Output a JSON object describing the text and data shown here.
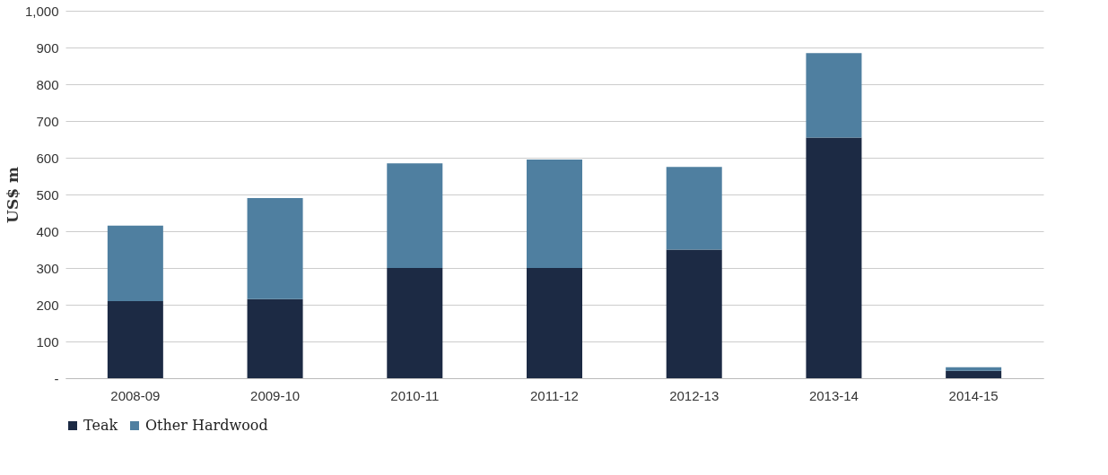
{
  "chart_data": {
    "type": "bar",
    "stacked": true,
    "ylabel": "US$ m",
    "categories": [
      "2008-09",
      "2009-10",
      "2010-11",
      "2011-12",
      "2012-13",
      "2013-14",
      "2014-15"
    ],
    "series": [
      {
        "name": "Teak",
        "color": "#1c2a44",
        "values": [
          210,
          215,
          300,
          300,
          350,
          655,
          20
        ]
      },
      {
        "name": "Other Hardwood",
        "color": "#4f7fa0",
        "values": [
          205,
          275,
          285,
          295,
          225,
          230,
          10
        ]
      }
    ],
    "ylim": [
      0,
      1000
    ],
    "yticks": [
      {
        "value": 0,
        "label": "-"
      },
      100,
      200,
      300,
      400,
      500,
      600,
      700,
      800,
      900,
      {
        "value": 1000,
        "label": "1,000"
      }
    ],
    "grid": "y",
    "legend": "bottom"
  }
}
